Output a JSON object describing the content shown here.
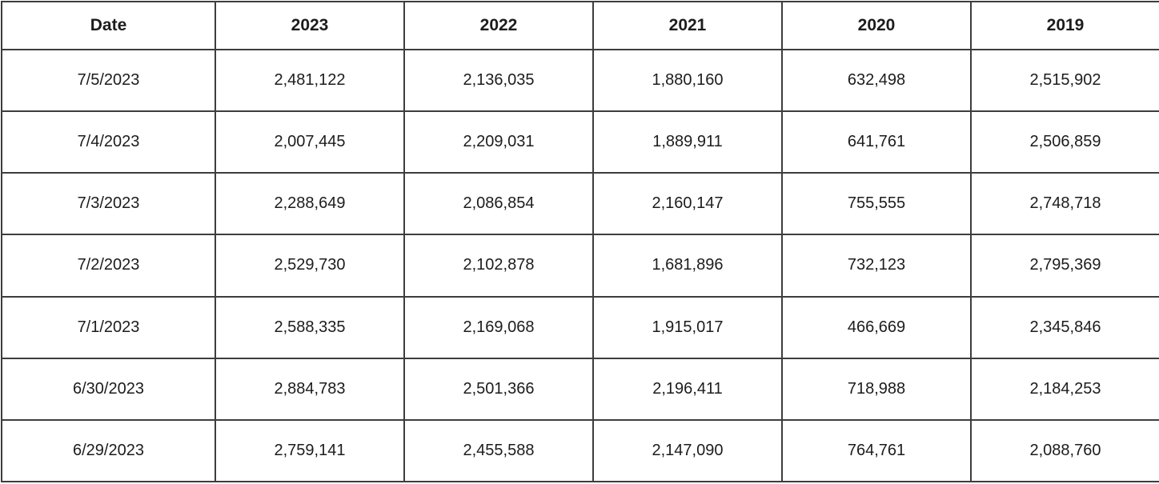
{
  "chart_data": {
    "type": "table",
    "title": "",
    "columns": [
      "Date",
      "2023",
      "2022",
      "2021",
      "2020",
      "2019"
    ],
    "rows": [
      [
        "7/5/2023",
        "2,481,122",
        "2,136,035",
        "1,880,160",
        "632,498",
        "2,515,902"
      ],
      [
        "7/4/2023",
        "2,007,445",
        "2,209,031",
        "1,889,911",
        "641,761",
        "2,506,859"
      ],
      [
        "7/3/2023",
        "2,288,649",
        "2,086,854",
        "2,160,147",
        "755,555",
        "2,748,718"
      ],
      [
        "7/2/2023",
        "2,529,730",
        "2,102,878",
        "1,681,896",
        "732,123",
        "2,795,369"
      ],
      [
        "7/1/2023",
        "2,588,335",
        "2,169,068",
        "1,915,017",
        "466,669",
        "2,345,846"
      ],
      [
        "6/30/2023",
        "2,884,783",
        "2,501,366",
        "2,196,411",
        "718,988",
        "2,184,253"
      ],
      [
        "6/29/2023",
        "2,759,141",
        "2,455,588",
        "2,147,090",
        "764,761",
        "2,088,760"
      ]
    ],
    "layout": {
      "header_bold": true,
      "cell_alignment": "center",
      "border_color": "#3d3d3d",
      "background_color": "#ffffff",
      "text_color": "#1c1c1c"
    }
  }
}
